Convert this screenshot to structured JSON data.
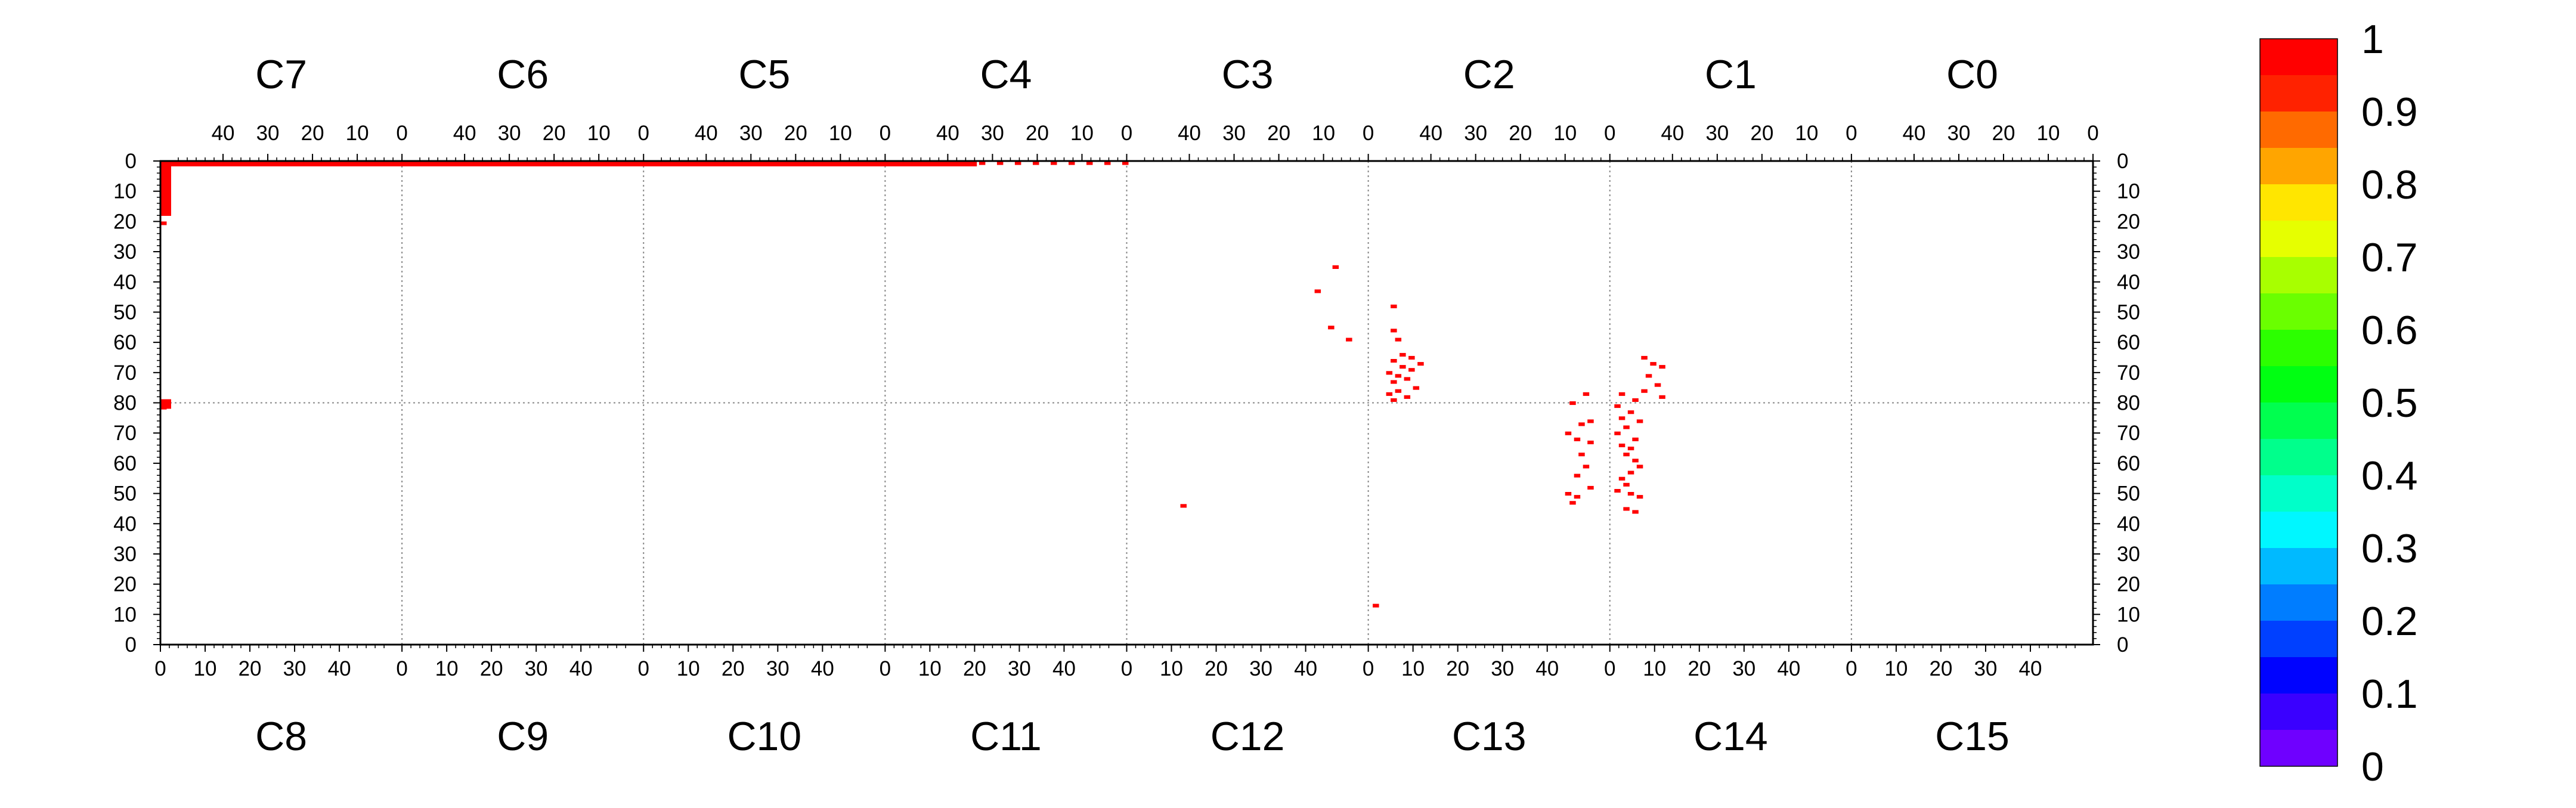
{
  "chart_data": {
    "type": "heatmap",
    "colorscale": {
      "min": 0,
      "max": 1,
      "tick_labels": [
        "1",
        "0.9",
        "0.8",
        "0.7",
        "0.6",
        "0.5",
        "0.4",
        "0.3",
        "0.2",
        "0.1",
        "0"
      ],
      "colors": [
        "#ff0000",
        "#ff2200",
        "#ff6a00",
        "#ffa500",
        "#ffe600",
        "#e6ff00",
        "#a8ff00",
        "#6aff00",
        "#2cff00",
        "#00ff12",
        "#00ff4f",
        "#00ff8c",
        "#00ffc9",
        "#00f7ff",
        "#00baff",
        "#007dff",
        "#0040ff",
        "#0003ff",
        "#3a00ff",
        "#6f00ff"
      ]
    },
    "top_chips": [
      "C7",
      "C6",
      "C5",
      "C4",
      "C3",
      "C2",
      "C1",
      "C0"
    ],
    "bottom_chips": [
      "C8",
      "C9",
      "C10",
      "C11",
      "C12",
      "C13",
      "C14",
      "C15"
    ],
    "top_ticks": [
      "40",
      "30",
      "20",
      "10",
      "0"
    ],
    "bottom_ticks": [
      "0",
      "10",
      "20",
      "30",
      "40"
    ],
    "y_ticks_top_half": [
      "0",
      "10",
      "20",
      "30",
      "40",
      "50",
      "60",
      "70",
      "80"
    ],
    "y_ticks_bottom_half": [
      "70",
      "60",
      "50",
      "40",
      "30",
      "20",
      "10",
      "0"
    ],
    "hits": [
      [
        0,
        0.1,
        4,
        1,
        1
      ],
      [
        0,
        0.1,
        14,
        1,
        1
      ],
      [
        0,
        0.1,
        18,
        1,
        1
      ],
      [
        0,
        0.1,
        22,
        1,
        1
      ],
      [
        0,
        0.1,
        27,
        1,
        1
      ],
      [
        0,
        0.1,
        30,
        1,
        1
      ],
      [
        0,
        0.1,
        33,
        1,
        1
      ],
      [
        0,
        0.1,
        36,
        1,
        1
      ],
      [
        0,
        0.1,
        37,
        1,
        1
      ],
      [
        0,
        0.1,
        38,
        1,
        1
      ],
      [
        0,
        0.1,
        39,
        1,
        1
      ],
      [
        0,
        0.1,
        41,
        1,
        1
      ],
      [
        0,
        0.1,
        42,
        1,
        1
      ],
      [
        0,
        0.1,
        43,
        1,
        1
      ],
      [
        0,
        0.1,
        44,
        1,
        1
      ],
      [
        0,
        0.1,
        46,
        1,
        1
      ],
      [
        0,
        0.1,
        47,
        1,
        1
      ],
      [
        0,
        0.1,
        48,
        1,
        1
      ],
      [
        0,
        0.1,
        49,
        1,
        1
      ],
      [
        1,
        0.1,
        0,
        1,
        1
      ],
      [
        1,
        0.1,
        2,
        1,
        1
      ],
      [
        1,
        0.1,
        5,
        1,
        1
      ],
      [
        1,
        0.1,
        8,
        1,
        1
      ],
      [
        1,
        0.1,
        11,
        1,
        1
      ],
      [
        1,
        0.1,
        14,
        1,
        1
      ],
      [
        1,
        0.1,
        17,
        1,
        1
      ],
      [
        1,
        0.1,
        20,
        1,
        1
      ],
      [
        1,
        0.1,
        23,
        1,
        1
      ],
      [
        1,
        0.1,
        26,
        1,
        1
      ],
      [
        1,
        0.1,
        29,
        1,
        1
      ],
      [
        1,
        0.1,
        32,
        1,
        1
      ],
      [
        1,
        0.1,
        35,
        1,
        1
      ],
      [
        1,
        0.1,
        38,
        1,
        1
      ],
      [
        1,
        0.1,
        41,
        1,
        1
      ],
      [
        1,
        0.1,
        44,
        1,
        1
      ],
      [
        1,
        0.1,
        47,
        1,
        1
      ],
      [
        1,
        0.1,
        49,
        1,
        1
      ],
      [
        2,
        0.1,
        0,
        1,
        1
      ],
      [
        2,
        0.1,
        3,
        1,
        1
      ],
      [
        2,
        0.1,
        6,
        1,
        1
      ],
      [
        2,
        0.1,
        9,
        1,
        1
      ],
      [
        2,
        0.1,
        12,
        1,
        1
      ],
      [
        2,
        0.1,
        15,
        1,
        1
      ],
      [
        2,
        0.1,
        18,
        1,
        1
      ],
      [
        2,
        0.1,
        21,
        1,
        1
      ],
      [
        2,
        0.1,
        24,
        1,
        1
      ],
      [
        2,
        0.1,
        27,
        1,
        1
      ],
      [
        2,
        0.1,
        30,
        1,
        1
      ],
      [
        2,
        0.1,
        33,
        1,
        1
      ],
      [
        2,
        0.1,
        36,
        1,
        1
      ],
      [
        2,
        0.1,
        39,
        1,
        1
      ],
      [
        2,
        0.1,
        42,
        1,
        1
      ],
      [
        2,
        0.1,
        45,
        1,
        1
      ],
      [
        2,
        0.1,
        48,
        1,
        1
      ],
      [
        3,
        0.1,
        0,
        1,
        1
      ],
      [
        3,
        0.1,
        4,
        1,
        1
      ],
      [
        3,
        0.1,
        8,
        1,
        1
      ],
      [
        3,
        0.1,
        12,
        1,
        1
      ],
      [
        3,
        0.1,
        16,
        1,
        1
      ],
      [
        3,
        0.1,
        20,
        1,
        1
      ],
      [
        3,
        0.1,
        24,
        1,
        1
      ],
      [
        3,
        0.1,
        28,
        1,
        1
      ],
      [
        3,
        0.1,
        32,
        1,
        1
      ],
      [
        3,
        0.1,
        36,
        1,
        1
      ],
      [
        3,
        0.1,
        40,
        1,
        1
      ],
      [
        3,
        0.1,
        44,
        1,
        1
      ],
      [
        0,
        0.1,
        0,
        1,
        1
      ],
      [
        0,
        1,
        0,
        1,
        1
      ],
      [
        0,
        2,
        0,
        1,
        1
      ],
      [
        0,
        3,
        0,
        1,
        1
      ],
      [
        0,
        4,
        0,
        1,
        1
      ],
      [
        0,
        5,
        0,
        1,
        1
      ],
      [
        0,
        6,
        0,
        1,
        1
      ],
      [
        0,
        7,
        0,
        1,
        1
      ],
      [
        0,
        8,
        0,
        1,
        1
      ],
      [
        0,
        9,
        0,
        1,
        1
      ],
      [
        0,
        10,
        0,
        1,
        1
      ],
      [
        0,
        11,
        0,
        1,
        1
      ],
      [
        0,
        12,
        0,
        1,
        1
      ],
      [
        0,
        13,
        0,
        1,
        1
      ],
      [
        0,
        14,
        0,
        1,
        1
      ],
      [
        0,
        15,
        0,
        1,
        1
      ],
      [
        0,
        16,
        0,
        1,
        1
      ],
      [
        0,
        20,
        0,
        1,
        1
      ],
      [
        0,
        79,
        0,
        1,
        1
      ],
      [
        0,
        80,
        0,
        1,
        1
      ],
      [
        0,
        81,
        0,
        1,
        1
      ],
      [
        4,
        34.5,
        7,
        1,
        1
      ],
      [
        4,
        42.5,
        11,
        1,
        1
      ],
      [
        4,
        54.5,
        8,
        1,
        1
      ],
      [
        4,
        58.5,
        4,
        1,
        1
      ],
      [
        12,
        45.5,
        12,
        1,
        1
      ],
      [
        5,
        47.5,
        48,
        1,
        1
      ],
      [
        5,
        55.5,
        48,
        1,
        1
      ],
      [
        5,
        58.5,
        47,
        1,
        1
      ],
      [
        5,
        63.5,
        46,
        1,
        1
      ],
      [
        5,
        64.5,
        44,
        1,
        1
      ],
      [
        5,
        65.5,
        48,
        1,
        1
      ],
      [
        5,
        66.5,
        42,
        1,
        1
      ],
      [
        5,
        67.5,
        46,
        1,
        1
      ],
      [
        5,
        68.5,
        44,
        1,
        1
      ],
      [
        5,
        69.5,
        49,
        1,
        1
      ],
      [
        5,
        70.5,
        47,
        1,
        1
      ],
      [
        5,
        71.5,
        45,
        1,
        1
      ],
      [
        5,
        72.5,
        48,
        1,
        1
      ],
      [
        5,
        74.5,
        43,
        1,
        1
      ],
      [
        5,
        75.5,
        47,
        1,
        1
      ],
      [
        5,
        76.5,
        49,
        1,
        1
      ],
      [
        5,
        77.5,
        45,
        1,
        1
      ],
      [
        5,
        78.5,
        48,
        1,
        1
      ],
      [
        6,
        64.5,
        46,
        1,
        1
      ],
      [
        6,
        66.5,
        44,
        1,
        1
      ],
      [
        6,
        67.5,
        42,
        1,
        1
      ],
      [
        6,
        70.5,
        45,
        1,
        1
      ],
      [
        6,
        73.5,
        43,
        1,
        1
      ],
      [
        6,
        75.5,
        46,
        1,
        1
      ],
      [
        6,
        77.5,
        42,
        1,
        1
      ],
      [
        13,
        82.5,
        48,
        1,
        1
      ],
      [
        13,
        79.5,
        45,
        1,
        1
      ],
      [
        13,
        73.5,
        49,
        1,
        1
      ],
      [
        13,
        72.5,
        47,
        1,
        1
      ],
      [
        13,
        69.5,
        44,
        1,
        1
      ],
      [
        13,
        67.5,
        46,
        1,
        1
      ],
      [
        13,
        66.5,
        49,
        1,
        1
      ],
      [
        13,
        62.5,
        47,
        1,
        1
      ],
      [
        13,
        58.5,
        48,
        1,
        1
      ],
      [
        13,
        55.5,
        46,
        1,
        1
      ],
      [
        13,
        51.5,
        49,
        1,
        1
      ],
      [
        13,
        49.5,
        44,
        1,
        1
      ],
      [
        13,
        48.5,
        46,
        1,
        1
      ],
      [
        13,
        46.5,
        45,
        1,
        1
      ],
      [
        13,
        12.5,
        1,
        1,
        1
      ],
      [
        14,
        82.5,
        2,
        1,
        1
      ],
      [
        14,
        80.5,
        5,
        1,
        1
      ],
      [
        14,
        78.5,
        1,
        1,
        1
      ],
      [
        14,
        76.5,
        4,
        1,
        1
      ],
      [
        14,
        74.5,
        2,
        1,
        1
      ],
      [
        14,
        73.5,
        6,
        1,
        1
      ],
      [
        14,
        71.5,
        3,
        1,
        1
      ],
      [
        14,
        69.5,
        1,
        1,
        1
      ],
      [
        14,
        67.5,
        5,
        1,
        1
      ],
      [
        14,
        65.5,
        2,
        1,
        1
      ],
      [
        14,
        64.5,
        4,
        1,
        1
      ],
      [
        14,
        62.5,
        3,
        1,
        1
      ],
      [
        14,
        60.5,
        5,
        1,
        1
      ],
      [
        14,
        58.5,
        6,
        1,
        1
      ],
      [
        14,
        56.5,
        4,
        1,
        1
      ],
      [
        14,
        54.5,
        2,
        1,
        1
      ],
      [
        14,
        52.5,
        3,
        1,
        1
      ],
      [
        14,
        50.5,
        1,
        1,
        1
      ],
      [
        14,
        49.5,
        4,
        1,
        1
      ],
      [
        14,
        48.5,
        6,
        1,
        1
      ],
      [
        14,
        44.5,
        3,
        1,
        1
      ],
      [
        14,
        43.5,
        5,
        1,
        1
      ]
    ]
  }
}
